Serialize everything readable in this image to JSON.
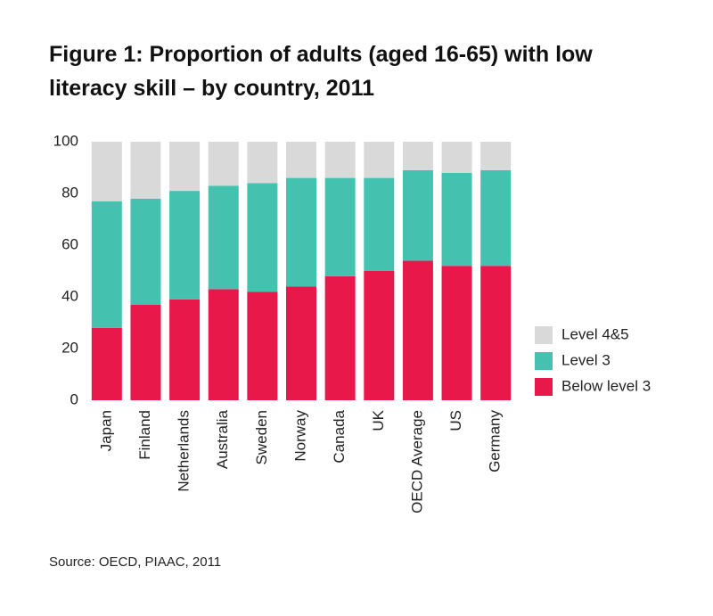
{
  "chart_data": {
    "type": "stacked_bar",
    "title": "Figure 1: Proportion of adults (aged 16-65) with low literacy skill – by country, 2011",
    "source": "Source: OECD, PIAAC, 2011",
    "categories": [
      "Japan",
      "Finland",
      "Netherlands",
      "Australia",
      "Sweden",
      "Norway",
      "Canada",
      "UK",
      "OECD Average",
      "US",
      "Germany"
    ],
    "series": [
      {
        "name": "Below level 3",
        "color": "#e8194a",
        "values": [
          28,
          37,
          39,
          43,
          42,
          44,
          48,
          50,
          54,
          52,
          52
        ]
      },
      {
        "name": "Level 3",
        "color": "#45c1b0",
        "values": [
          49,
          41,
          42,
          40,
          42,
          42,
          38,
          36,
          35,
          36,
          37
        ]
      },
      {
        "name": "Level 4&5",
        "color": "#d9d9d9",
        "values": [
          23,
          22,
          19,
          17,
          16,
          14,
          14,
          14,
          11,
          12,
          11
        ]
      }
    ],
    "ylim": [
      0,
      100
    ],
    "yticks": [
      0,
      20,
      40,
      60,
      80,
      100
    ],
    "grid": false
  }
}
